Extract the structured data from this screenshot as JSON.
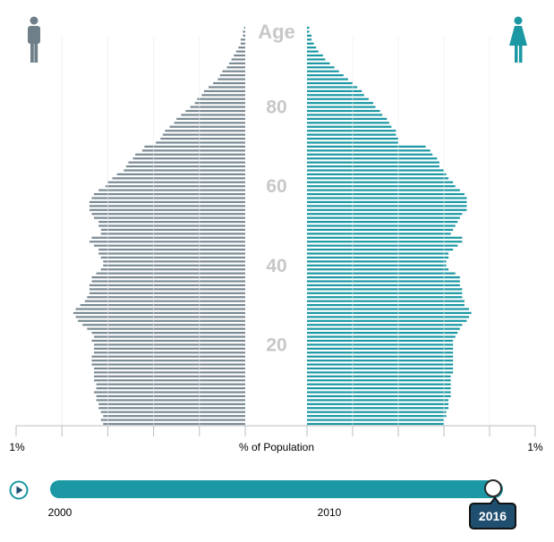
{
  "chart_data": {
    "type": "bar",
    "title": "",
    "age_axis_label": "Age",
    "age_ticks": [
      20,
      40,
      60,
      80
    ],
    "x_axis_label": "% of Population",
    "x_axis_left_label": "1%",
    "x_axis_right_label": "1%",
    "x_max_percent": 1.0,
    "ages": [
      0,
      1,
      2,
      3,
      4,
      5,
      6,
      7,
      8,
      9,
      10,
      11,
      12,
      13,
      14,
      15,
      16,
      17,
      18,
      19,
      20,
      21,
      22,
      23,
      24,
      25,
      26,
      27,
      28,
      29,
      30,
      31,
      32,
      33,
      34,
      35,
      36,
      37,
      38,
      39,
      40,
      41,
      42,
      43,
      44,
      45,
      46,
      47,
      48,
      49,
      50,
      51,
      52,
      53,
      54,
      55,
      56,
      57,
      58,
      59,
      60,
      61,
      62,
      63,
      64,
      65,
      66,
      67,
      68,
      69,
      70,
      71,
      72,
      73,
      74,
      75,
      76,
      77,
      78,
      79,
      80,
      81,
      82,
      83,
      84,
      85,
      86,
      87,
      88,
      89,
      90,
      91,
      92,
      93,
      94,
      95,
      96,
      97,
      98,
      99,
      100
    ],
    "series": [
      {
        "name": "Male",
        "color": "#7a8a94",
        "values": [
          0.62,
          0.63,
          0.62,
          0.63,
          0.64,
          0.64,
          0.65,
          0.65,
          0.66,
          0.65,
          0.65,
          0.66,
          0.66,
          0.66,
          0.66,
          0.67,
          0.67,
          0.67,
          0.66,
          0.66,
          0.66,
          0.67,
          0.66,
          0.67,
          0.69,
          0.71,
          0.73,
          0.74,
          0.75,
          0.74,
          0.72,
          0.7,
          0.69,
          0.68,
          0.68,
          0.68,
          0.67,
          0.67,
          0.65,
          0.63,
          0.62,
          0.62,
          0.63,
          0.64,
          0.64,
          0.66,
          0.68,
          0.67,
          0.63,
          0.63,
          0.64,
          0.64,
          0.66,
          0.67,
          0.68,
          0.68,
          0.68,
          0.67,
          0.66,
          0.64,
          0.61,
          0.6,
          0.58,
          0.56,
          0.53,
          0.52,
          0.51,
          0.49,
          0.48,
          0.45,
          0.44,
          0.39,
          0.37,
          0.36,
          0.35,
          0.33,
          0.31,
          0.3,
          0.28,
          0.26,
          0.24,
          0.22,
          0.21,
          0.19,
          0.18,
          0.16,
          0.14,
          0.12,
          0.11,
          0.1,
          0.08,
          0.07,
          0.06,
          0.05,
          0.04,
          0.03,
          0.02,
          0.02,
          0.01,
          0.01,
          0.005
        ]
      },
      {
        "name": "Female",
        "color": "#1b98a3",
        "values": [
          0.6,
          0.6,
          0.61,
          0.61,
          0.62,
          0.62,
          0.62,
          0.63,
          0.63,
          0.63,
          0.63,
          0.63,
          0.63,
          0.64,
          0.64,
          0.64,
          0.64,
          0.64,
          0.64,
          0.64,
          0.64,
          0.64,
          0.65,
          0.66,
          0.67,
          0.68,
          0.7,
          0.71,
          0.72,
          0.71,
          0.69,
          0.69,
          0.68,
          0.68,
          0.68,
          0.67,
          0.67,
          0.67,
          0.65,
          0.62,
          0.61,
          0.61,
          0.62,
          0.62,
          0.64,
          0.66,
          0.68,
          0.68,
          0.63,
          0.64,
          0.65,
          0.66,
          0.67,
          0.68,
          0.7,
          0.7,
          0.7,
          0.7,
          0.69,
          0.67,
          0.65,
          0.64,
          0.62,
          0.61,
          0.6,
          0.58,
          0.58,
          0.57,
          0.55,
          0.54,
          0.52,
          0.4,
          0.4,
          0.39,
          0.39,
          0.37,
          0.36,
          0.35,
          0.33,
          0.32,
          0.3,
          0.29,
          0.27,
          0.25,
          0.24,
          0.22,
          0.2,
          0.18,
          0.16,
          0.14,
          0.12,
          0.1,
          0.08,
          0.07,
          0.05,
          0.04,
          0.03,
          0.02,
          0.02,
          0.01,
          0.01
        ]
      }
    ],
    "legend": [
      {
        "name": "male-icon",
        "color": "#6f7f89"
      },
      {
        "name": "female-icon",
        "color": "#1b98a3"
      }
    ],
    "grid": true
  },
  "timeline": {
    "start_label": "2000",
    "mid_label": "2010",
    "current_year": "2016",
    "year_min": 2000,
    "year_max": 2017,
    "track_color": "#1b98a3",
    "badge_color": "#1f4e6e",
    "play_icon": "play-icon"
  }
}
